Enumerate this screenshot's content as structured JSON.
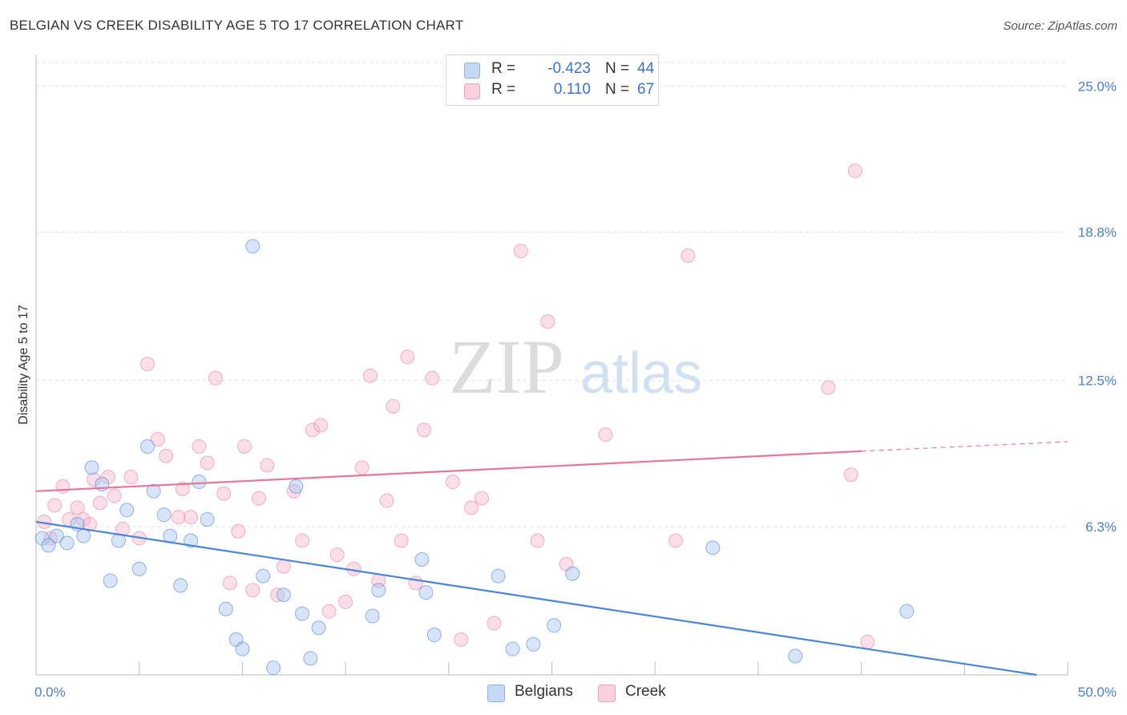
{
  "header": {
    "title": "BELGIAN VS CREEK DISABILITY AGE 5 TO 17 CORRELATION CHART",
    "source": "Source: ZipAtlas.com"
  },
  "watermark": {
    "zip": "ZIP",
    "atlas": "atlas"
  },
  "legend": {
    "rows": [
      {
        "r_label": "R =",
        "r_value": "-0.423",
        "n_label": "N =",
        "n_value": "44",
        "color": "#a9c6ef"
      },
      {
        "r_label": "R =",
        "r_value": "0.110",
        "n_label": "N =",
        "n_value": "67",
        "color": "#f4b8cb"
      }
    ]
  },
  "bottom_legend": {
    "items": [
      {
        "label": "Belgians",
        "color": "#a9c6ef"
      },
      {
        "label": "Creek",
        "color": "#f4b8cb"
      }
    ]
  },
  "chart_data": {
    "type": "scatter",
    "title": "BELGIAN VS CREEK DISABILITY AGE 5 TO 17 CORRELATION CHART",
    "xlabel": "",
    "ylabel": "Disability Age 5 to 17",
    "xlim": [
      0,
      50
    ],
    "ylim": [
      0,
      26
    ],
    "y_ticks": [
      {
        "value": 6.3,
        "label": "6.3%"
      },
      {
        "value": 12.5,
        "label": "12.5%"
      },
      {
        "value": 18.8,
        "label": "18.8%"
      },
      {
        "value": 25.0,
        "label": "25.0%"
      }
    ],
    "x_tick_labels": [
      {
        "value": 0,
        "label": "0.0%"
      },
      {
        "value": 50,
        "label": "50.0%"
      }
    ],
    "grid": true,
    "legend_placement": "top-center",
    "colors": {
      "belgians": "#4a86d8",
      "creek": "#e8759c",
      "belgians_fill": "#a9c6ef",
      "creek_fill": "#f4b8cb"
    },
    "series": [
      {
        "name": "Belgians",
        "r": -0.423,
        "n": 44,
        "trend": {
          "x": [
            0,
            48.5
          ],
          "y": [
            6.5,
            0.0
          ]
        },
        "points": [
          [
            0.3,
            5.8
          ],
          [
            0.6,
            5.5
          ],
          [
            1.0,
            5.9
          ],
          [
            1.5,
            5.6
          ],
          [
            2.0,
            6.4
          ],
          [
            2.3,
            5.9
          ],
          [
            2.7,
            8.8
          ],
          [
            3.2,
            8.1
          ],
          [
            3.6,
            4.0
          ],
          [
            4.0,
            5.7
          ],
          [
            4.4,
            7.0
          ],
          [
            5.0,
            4.5
          ],
          [
            5.4,
            9.7
          ],
          [
            5.7,
            7.8
          ],
          [
            6.2,
            6.8
          ],
          [
            6.5,
            5.9
          ],
          [
            7.0,
            3.8
          ],
          [
            7.5,
            5.7
          ],
          [
            7.9,
            8.2
          ],
          [
            8.3,
            6.6
          ],
          [
            9.2,
            2.8
          ],
          [
            9.7,
            1.5
          ],
          [
            10.0,
            1.1
          ],
          [
            10.5,
            18.2
          ],
          [
            11.0,
            4.2
          ],
          [
            11.5,
            0.3
          ],
          [
            12.0,
            3.4
          ],
          [
            12.6,
            8.0
          ],
          [
            12.9,
            2.6
          ],
          [
            13.3,
            0.7
          ],
          [
            13.7,
            2.0
          ],
          [
            16.3,
            2.5
          ],
          [
            16.6,
            3.6
          ],
          [
            18.7,
            4.9
          ],
          [
            18.9,
            3.5
          ],
          [
            19.3,
            1.7
          ],
          [
            22.4,
            4.2
          ],
          [
            23.1,
            1.1
          ],
          [
            24.1,
            1.3
          ],
          [
            25.1,
            2.1
          ],
          [
            26.0,
            4.3
          ],
          [
            32.8,
            5.4
          ],
          [
            36.8,
            0.8
          ],
          [
            42.2,
            2.7
          ]
        ]
      },
      {
        "name": "Creek",
        "r": 0.11,
        "n": 67,
        "trend": {
          "x": [
            0,
            40,
            50
          ],
          "y": [
            7.8,
            9.5,
            9.9
          ]
        },
        "points": [
          [
            0.4,
            6.5
          ],
          [
            0.7,
            5.8
          ],
          [
            0.9,
            7.2
          ],
          [
            1.3,
            8.0
          ],
          [
            1.6,
            6.6
          ],
          [
            2.0,
            7.1
          ],
          [
            2.3,
            6.6
          ],
          [
            2.6,
            6.4
          ],
          [
            2.8,
            8.3
          ],
          [
            3.1,
            7.3
          ],
          [
            3.5,
            8.4
          ],
          [
            3.8,
            7.6
          ],
          [
            4.2,
            6.2
          ],
          [
            4.6,
            8.4
          ],
          [
            5.0,
            5.8
          ],
          [
            5.4,
            13.2
          ],
          [
            5.9,
            10.0
          ],
          [
            6.3,
            9.3
          ],
          [
            6.9,
            6.7
          ],
          [
            7.1,
            7.9
          ],
          [
            7.5,
            6.7
          ],
          [
            7.9,
            9.7
          ],
          [
            8.3,
            9.0
          ],
          [
            8.7,
            12.6
          ],
          [
            9.1,
            7.7
          ],
          [
            9.4,
            3.9
          ],
          [
            9.8,
            6.1
          ],
          [
            10.1,
            9.7
          ],
          [
            10.5,
            3.6
          ],
          [
            10.8,
            7.5
          ],
          [
            11.2,
            8.9
          ],
          [
            11.7,
            3.4
          ],
          [
            12.0,
            4.6
          ],
          [
            12.5,
            7.8
          ],
          [
            12.9,
            5.7
          ],
          [
            13.4,
            10.4
          ],
          [
            13.8,
            10.6
          ],
          [
            14.2,
            2.7
          ],
          [
            14.6,
            5.1
          ],
          [
            15.0,
            3.1
          ],
          [
            15.4,
            4.5
          ],
          [
            15.8,
            8.8
          ],
          [
            16.2,
            12.7
          ],
          [
            16.6,
            4.0
          ],
          [
            17.0,
            7.4
          ],
          [
            17.3,
            11.4
          ],
          [
            17.7,
            5.7
          ],
          [
            18.0,
            13.5
          ],
          [
            18.4,
            3.9
          ],
          [
            18.8,
            10.4
          ],
          [
            19.2,
            12.6
          ],
          [
            20.2,
            8.2
          ],
          [
            20.6,
            1.5
          ],
          [
            21.1,
            7.1
          ],
          [
            21.6,
            7.5
          ],
          [
            22.2,
            2.2
          ],
          [
            23.5,
            18.0
          ],
          [
            24.3,
            5.7
          ],
          [
            24.8,
            15.0
          ],
          [
            25.7,
            4.7
          ],
          [
            27.6,
            10.2
          ],
          [
            31.0,
            5.7
          ],
          [
            31.6,
            17.8
          ],
          [
            38.4,
            12.2
          ],
          [
            39.5,
            8.5
          ],
          [
            39.7,
            21.4
          ],
          [
            40.3,
            1.4
          ]
        ]
      }
    ]
  }
}
